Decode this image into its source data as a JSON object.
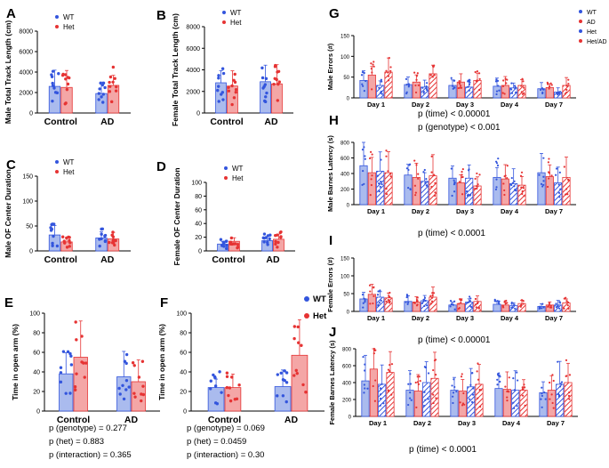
{
  "colors": {
    "wt": "#3355dd",
    "het": "#e63333",
    "wt_fill": "#aabbee",
    "het_fill": "#f4a6a6",
    "axis": "#000000"
  },
  "chart_data": [
    {
      "id": "A",
      "type": "bar",
      "panel_label": "A",
      "ylabel": "Male Total Track Length (cm)",
      "categories": [
        "Control",
        "AD"
      ],
      "ylim": [
        0,
        8000
      ],
      "yticks": [
        0,
        2000,
        4000,
        6000,
        8000
      ],
      "legend": [
        "WT",
        "Het"
      ],
      "series": [
        {
          "name": "WT",
          "values": [
            2600,
            1900
          ]
        },
        {
          "name": "Het",
          "values": [
            2500,
            2700
          ]
        }
      ]
    },
    {
      "id": "B",
      "type": "bar",
      "panel_label": "B",
      "ylabel": "Female Total Track Length (cm)",
      "categories": [
        "Control",
        "AD"
      ],
      "ylim": [
        0,
        8000
      ],
      "yticks": [
        0,
        2000,
        4000,
        6000,
        8000
      ],
      "legend": [
        "WT",
        "Het"
      ],
      "series": [
        {
          "name": "WT",
          "values": [
            2800,
            2900
          ]
        },
        {
          "name": "Het",
          "values": [
            2500,
            2700
          ]
        }
      ]
    },
    {
      "id": "C",
      "type": "bar",
      "panel_label": "C",
      "ylabel": "Male OF Center Duration",
      "categories": [
        "Control",
        "AD"
      ],
      "ylim": [
        0,
        150
      ],
      "yticks": [
        0,
        50,
        100,
        150
      ],
      "legend": [
        "WT",
        "Het"
      ],
      "series": [
        {
          "name": "WT",
          "values": [
            32,
            26
          ]
        },
        {
          "name": "Het",
          "values": [
            18,
            24
          ]
        }
      ]
    },
    {
      "id": "D",
      "type": "bar",
      "panel_label": "D",
      "ylabel": "Female OF Center Duration",
      "categories": [
        "Control",
        "AD"
      ],
      "ylim": [
        0,
        100
      ],
      "yticks": [
        0,
        20,
        40,
        60,
        80,
        100
      ],
      "legend": [
        "WT",
        "Het"
      ],
      "series": [
        {
          "name": "WT",
          "values": [
            10,
            15
          ]
        },
        {
          "name": "Het",
          "values": [
            14,
            17
          ]
        }
      ]
    },
    {
      "id": "E",
      "type": "bar",
      "panel_label": "E",
      "ylabel": "Time in open arm (%)",
      "categories": [
        "Control",
        "AD"
      ],
      "ylim": [
        0,
        100
      ],
      "yticks": [
        0,
        20,
        40,
        60,
        80,
        100
      ],
      "series": [
        {
          "name": "WT",
          "values": [
            38,
            35
          ]
        },
        {
          "name": "Het",
          "values": [
            55,
            30
          ]
        }
      ],
      "stats": [
        "p (genotype) = 0.277",
        "p (het) = 0.883",
        "p (interaction) = 0.365"
      ]
    },
    {
      "id": "F",
      "type": "bar",
      "panel_label": "F",
      "ylabel": "Time in open arm (%)",
      "categories": [
        "Control",
        "AD"
      ],
      "ylim": [
        0,
        100
      ],
      "yticks": [
        0,
        20,
        40,
        60,
        80,
        100
      ],
      "legend": [
        "WT",
        "Het"
      ],
      "series": [
        {
          "name": "WT",
          "values": [
            24,
            25
          ]
        },
        {
          "name": "Het",
          "values": [
            24,
            57
          ]
        }
      ],
      "stats": [
        "p (genotype) = 0.069",
        "p (het) = 0.0459",
        "p (interaction) = 0.30"
      ]
    },
    {
      "id": "G",
      "type": "bar",
      "panel_label": "G",
      "ylabel": "Male Errors (#)",
      "categories": [
        "Day 1",
        "Day 2",
        "Day 3",
        "Day 4",
        "Day 7"
      ],
      "ylim": [
        0,
        150
      ],
      "yticks": [
        0,
        50,
        100,
        150
      ],
      "legend": [
        "WT",
        "AD",
        "Het",
        "Het/AD"
      ],
      "series": [
        {
          "name": "WT",
          "values": [
            42,
            32,
            30,
            28,
            22
          ]
        },
        {
          "name": "AD",
          "values": [
            55,
            38,
            38,
            30,
            25
          ]
        },
        {
          "name": "Het",
          "values": [
            30,
            26,
            26,
            24,
            14
          ]
        },
        {
          "name": "Het/AD",
          "values": [
            62,
            58,
            42,
            30,
            30
          ]
        }
      ],
      "stats": [
        "p (time) < 0.00001",
        "p (genotype) < 0.001"
      ]
    },
    {
      "id": "H",
      "type": "bar",
      "panel_label": "H",
      "ylabel": "Male Barnes Latency (s)",
      "categories": [
        "Day 1",
        "Day 2",
        "Day 3",
        "Day 4",
        "Day 7"
      ],
      "ylim": [
        0,
        800
      ],
      "yticks": [
        0,
        200,
        400,
        600,
        800
      ],
      "series": [
        {
          "name": "WT",
          "values": [
            500,
            380,
            340,
            350,
            410
          ]
        },
        {
          "name": "AD",
          "values": [
            410,
            350,
            280,
            330,
            360
          ]
        },
        {
          "name": "Het",
          "values": [
            430,
            300,
            340,
            270,
            280
          ]
        },
        {
          "name": "Het/AD",
          "values": [
            410,
            370,
            240,
            250,
            350
          ]
        }
      ],
      "stats": [
        "p (time) < 0.0001"
      ]
    },
    {
      "id": "I",
      "type": "bar",
      "panel_label": "I",
      "ylabel": "Female Errors (#)",
      "categories": [
        "Day 1",
        "Day 2",
        "Day 3",
        "Day 4",
        "Day 7"
      ],
      "ylim": [
        0,
        150
      ],
      "yticks": [
        0,
        50,
        100,
        150
      ],
      "series": [
        {
          "name": "WT",
          "values": [
            35,
            28,
            18,
            20,
            14
          ]
        },
        {
          "name": "AD",
          "values": [
            48,
            26,
            22,
            18,
            18
          ]
        },
        {
          "name": "Het",
          "values": [
            40,
            30,
            26,
            16,
            18
          ]
        },
        {
          "name": "Het/AD",
          "values": [
            38,
            40,
            28,
            22,
            24
          ]
        }
      ],
      "stats": [
        "p (time) < 0.00001"
      ]
    },
    {
      "id": "J",
      "type": "bar",
      "panel_label": "J",
      "ylabel": "Female Barnes Latency (s)",
      "categories": [
        "Day 1",
        "Day 2",
        "Day 3",
        "Day 4",
        "Day 7"
      ],
      "ylim": [
        0,
        800
      ],
      "yticks": [
        0,
        200,
        400,
        600,
        800
      ],
      "series": [
        {
          "name": "WT",
          "values": [
            420,
            310,
            310,
            330,
            280
          ]
        },
        {
          "name": "AD",
          "values": [
            560,
            300,
            300,
            320,
            310
          ]
        },
        {
          "name": "Het",
          "values": [
            380,
            400,
            350,
            310,
            380
          ]
        },
        {
          "name": "Het/AD",
          "values": [
            520,
            450,
            380,
            310,
            400
          ]
        }
      ],
      "stats": [
        "p (time) < 0.0001"
      ]
    }
  ]
}
